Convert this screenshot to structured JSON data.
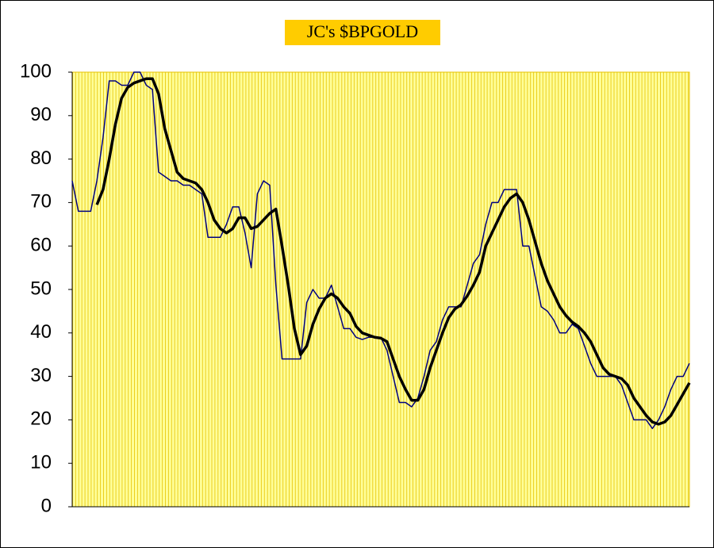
{
  "chart_data": {
    "type": "line",
    "title": "JC's $BPGOLD",
    "categories": [
      null,
      null,
      null,
      null,
      null,
      null,
      null,
      null,
      null,
      null,
      null,
      null,
      null,
      null,
      null,
      null,
      null,
      null,
      null,
      null,
      null,
      null,
      null,
      null,
      null,
      null,
      null,
      null,
      null,
      null,
      null,
      null,
      null,
      null,
      null,
      null,
      null,
      null,
      null,
      null,
      null,
      null,
      null,
      null,
      null,
      null,
      null,
      null,
      null,
      null,
      null,
      null,
      null,
      null,
      null,
      null,
      null,
      null,
      null,
      null,
      null,
      null,
      null,
      null,
      null,
      null,
      null,
      null,
      null,
      null,
      null,
      null,
      null,
      null,
      null,
      null,
      null,
      null,
      null,
      null,
      null,
      null,
      null,
      null,
      null,
      null,
      null,
      null,
      null,
      null,
      null,
      null,
      null,
      null,
      null,
      null,
      null,
      null,
      null,
      null,
      null
    ],
    "series": [
      {
        "color": "#000080",
        "values": [
          75,
          68,
          68,
          68,
          75,
          85,
          98,
          98,
          97,
          97,
          100,
          100,
          97,
          96,
          77,
          76,
          75,
          75,
          74,
          74,
          73,
          72,
          62,
          62,
          62,
          65,
          69,
          69,
          63,
          55,
          72,
          75,
          74,
          51,
          34,
          34,
          34,
          34,
          47,
          50,
          48,
          48,
          51,
          46,
          41,
          41,
          39,
          38.5,
          39,
          39,
          39,
          36,
          30,
          24,
          24,
          23,
          25,
          30,
          36,
          38,
          43,
          46,
          46,
          46,
          51,
          56,
          58,
          65,
          70,
          70,
          73,
          73,
          73,
          60,
          60,
          53,
          46,
          45,
          43,
          40,
          40,
          42,
          41,
          37,
          33,
          30,
          30,
          30,
          30,
          28,
          24,
          20,
          20,
          20,
          18,
          20,
          23,
          27,
          30,
          30,
          33
        ]
      },
      {
        "color": "#000000",
        "values": [
          null,
          null,
          null,
          null,
          69.5,
          73,
          80,
          88,
          94,
          96.5,
          97.5,
          98,
          98.5,
          98.5,
          95,
          87,
          82,
          77,
          75.5,
          75,
          74.5,
          73,
          70,
          66,
          64,
          63,
          64,
          66.5,
          66.5,
          64,
          64.5,
          66,
          67.5,
          68.5,
          60,
          51,
          41,
          35,
          37,
          42,
          45.5,
          48,
          49,
          48,
          46,
          44.5,
          41.5,
          40,
          39.5,
          39,
          38.8,
          38,
          34,
          30,
          27,
          24.5,
          24.5,
          27,
          32,
          36,
          40,
          43.5,
          45.5,
          46.5,
          48.5,
          51,
          54,
          60,
          63,
          66,
          69,
          71,
          72,
          70,
          66,
          61,
          56,
          52,
          49,
          46,
          44,
          42.5,
          41.5,
          40,
          38,
          35,
          32,
          30.5,
          30,
          29.5,
          28,
          25,
          23,
          21,
          19.5,
          19,
          19.5,
          21,
          23.5,
          26,
          28.5
        ]
      }
    ],
    "ylim": [
      0,
      100
    ],
    "yticks": [
      0,
      10,
      20,
      30,
      40,
      50,
      60,
      70,
      80,
      90,
      100
    ]
  }
}
